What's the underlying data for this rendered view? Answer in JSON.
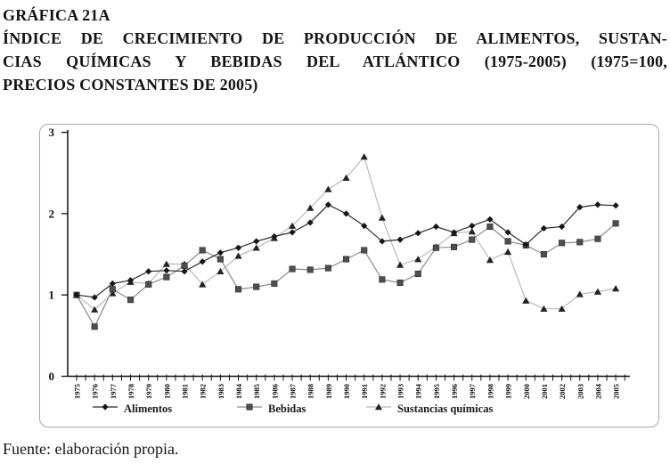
{
  "document": {
    "title_lines": [
      "GRÁFICA 21A",
      "ÍNDICE DE CRECIMIENTO DE PRODUCCIÓN DE ALIMENTOS, SUSTAN-",
      "CIAS QUÍMICAS Y BEBIDAS DEL ATLÁNTICO (1975-2005) (1975=100,",
      "PRECIOS CONSTANTES DE 2005)"
    ],
    "source_note": "Fuente: elaboración propia."
  },
  "chart_data": {
    "type": "line",
    "title": "",
    "xlabel": "",
    "ylabel": "",
    "ylim": [
      0,
      3
    ],
    "yticks": [
      0,
      1,
      2,
      3
    ],
    "grid": false,
    "legend_position": "bottom",
    "x": [
      1975,
      1976,
      1977,
      1978,
      1979,
      1980,
      1981,
      1982,
      1983,
      1984,
      1985,
      1986,
      1987,
      1988,
      1989,
      1990,
      1991,
      1992,
      1993,
      1994,
      1995,
      1996,
      1997,
      1998,
      1999,
      2000,
      2001,
      2002,
      2003,
      2004,
      2005
    ],
    "series": [
      {
        "name": "Alimentos",
        "marker": "diamond",
        "marker_color": "#161616",
        "line_color": "#2b2b2b",
        "values": [
          1.0,
          0.97,
          1.14,
          1.18,
          1.29,
          1.3,
          1.29,
          1.41,
          1.52,
          1.58,
          1.66,
          1.72,
          1.77,
          1.89,
          2.11,
          2.0,
          1.85,
          1.66,
          1.68,
          1.76,
          1.84,
          1.77,
          1.85,
          1.93,
          1.77,
          1.62,
          1.82,
          1.84,
          2.08,
          2.11,
          2.1
        ]
      },
      {
        "name": "Bebidas",
        "marker": "square",
        "marker_color": "#4f4f4f",
        "line_color": "#8c8c8c",
        "values": [
          1.0,
          0.61,
          1.07,
          0.94,
          1.13,
          1.22,
          1.36,
          1.55,
          1.44,
          1.07,
          1.1,
          1.14,
          1.32,
          1.31,
          1.33,
          1.44,
          1.55,
          1.19,
          1.15,
          1.26,
          1.58,
          1.59,
          1.68,
          1.84,
          1.66,
          1.61,
          1.5,
          1.64,
          1.65,
          1.69,
          1.88
        ]
      },
      {
        "name": "Sustancias químicas",
        "marker": "triangle",
        "marker_color": "#222222",
        "line_color": "#b9b9b9",
        "values": [
          1.0,
          0.82,
          1.02,
          1.16,
          1.14,
          1.38,
          1.38,
          1.13,
          1.29,
          1.48,
          1.58,
          1.7,
          1.85,
          2.07,
          2.3,
          2.44,
          2.7,
          1.95,
          1.37,
          1.44,
          1.59,
          1.76,
          1.78,
          1.43,
          1.53,
          0.93,
          0.83,
          0.83,
          1.01,
          1.04,
          1.08
        ]
      }
    ]
  }
}
